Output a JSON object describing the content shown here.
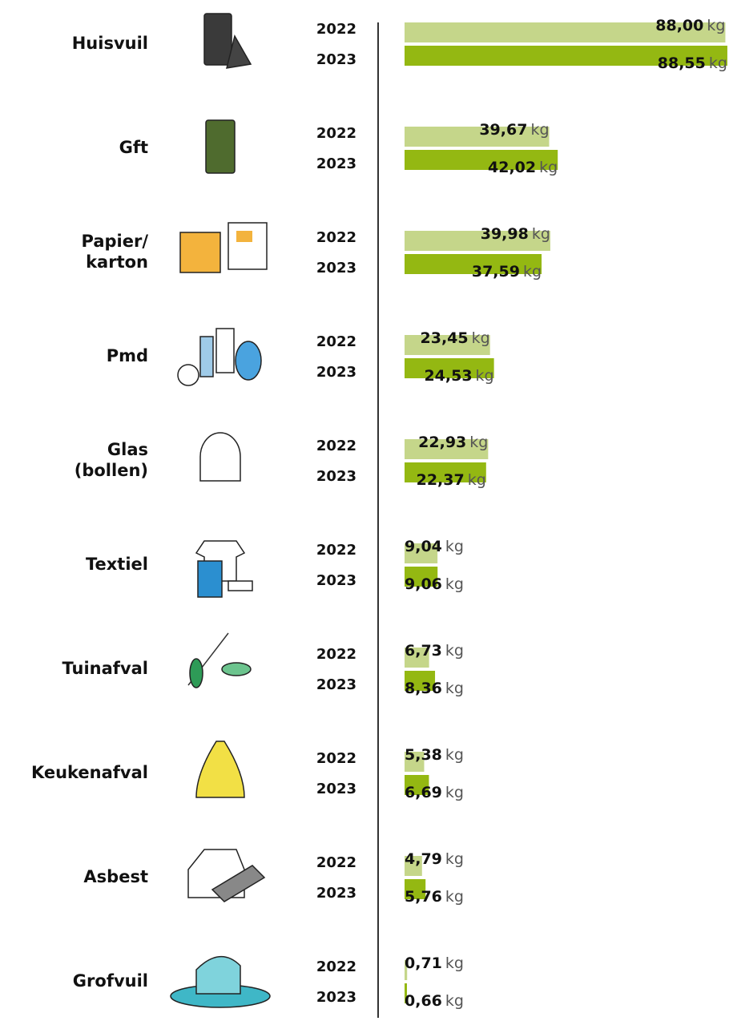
{
  "chart_data": {
    "type": "bar",
    "orientation": "horizontal",
    "unit": "kg",
    "categories": [
      "Huisvuil",
      "Gft",
      "Papier/\nkarton",
      "Pmd",
      "Glas\n(bollen)",
      "Textiel",
      "Tuinafval",
      "Keukenafval",
      "Asbest",
      "Grofvuil"
    ],
    "series": [
      {
        "name": "2022",
        "color": "#c5d68a",
        "values": [
          88.0,
          39.67,
          39.98,
          23.45,
          22.93,
          9.04,
          6.73,
          5.38,
          4.79,
          0.71
        ],
        "value_labels": [
          "88,00",
          "39,67",
          "39,98",
          "23,45",
          "22,93",
          "9,04",
          "6,73",
          "5,38",
          "4,79",
          "0,71"
        ]
      },
      {
        "name": "2023",
        "color": "#94b812",
        "values": [
          88.55,
          42.02,
          37.59,
          24.53,
          22.37,
          9.06,
          8.36,
          6.69,
          5.76,
          0.66
        ],
        "value_labels": [
          "88,55",
          "42,02",
          "37,59",
          "24,53",
          "22,37",
          "9,06",
          "8,36",
          "6,69",
          "5,76",
          "0,66"
        ]
      }
    ],
    "xlim": [
      0,
      89
    ]
  }
}
